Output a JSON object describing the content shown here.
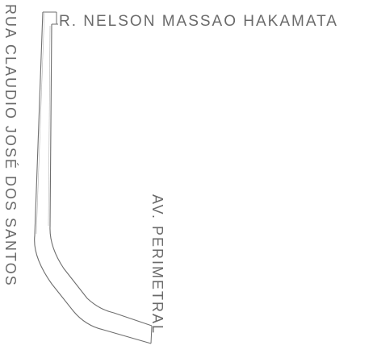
{
  "map": {
    "street_top": "R. NELSON MASSAO HAKAMATA",
    "street_left": "RUA CLAUDIO JOSÉ DOS SANTOS",
    "street_right": "AV. PERIMETRAL"
  },
  "colors": {
    "line": "#6e6e6e",
    "text": "#6a6a6a",
    "background": "#ffffff"
  }
}
